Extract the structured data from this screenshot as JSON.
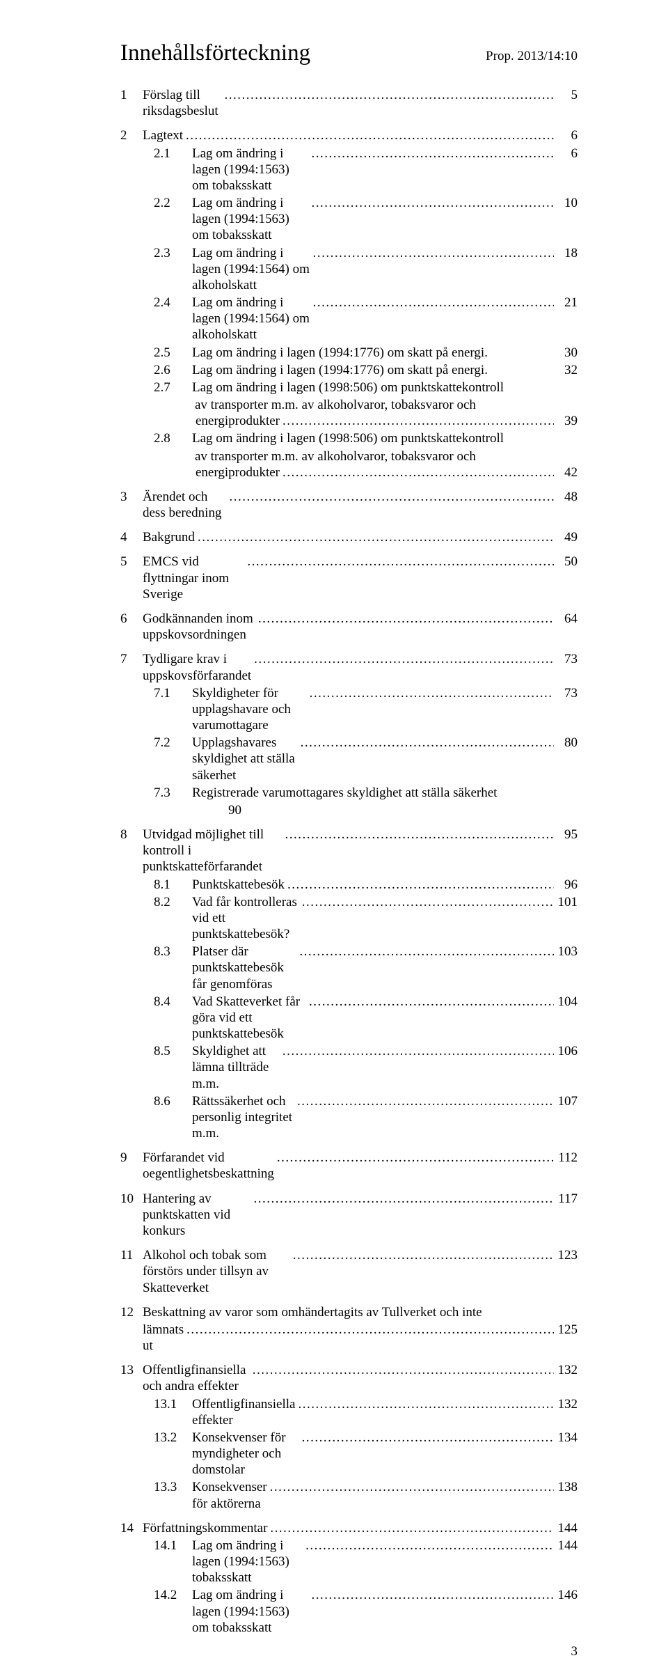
{
  "header": {
    "title": "Innehållsförteckning",
    "prop_ref": "Prop. 2013/14:10"
  },
  "toc": [
    {
      "n": "1",
      "label": "Förslag till riksdagsbeslut",
      "p": "5",
      "children": []
    },
    {
      "n": "2",
      "label": "Lagtext",
      "p": "6",
      "children": [
        {
          "n": "2.1",
          "label": "Lag om ändring i lagen (1994:1563) om tobaksskatt",
          "p": "6"
        },
        {
          "n": "2.2",
          "label": "Lag om ändring i lagen (1994:1563) om tobaksskatt",
          "p": "10"
        },
        {
          "n": "2.3",
          "label": "Lag om ändring i lagen (1994:1564) om alkoholskatt",
          "p": "18"
        },
        {
          "n": "2.4",
          "label": "Lag om ändring i lagen (1994:1564) om alkoholskatt",
          "p": "21"
        },
        {
          "n": "2.5",
          "label": "Lag om ändring i lagen (1994:1776) om skatt på energi.",
          "p": "30",
          "noleader": true
        },
        {
          "n": "2.6",
          "label": "Lag om ändring i lagen (1994:1776) om skatt på energi.",
          "p": "32",
          "noleader": true
        },
        {
          "n": "2.7",
          "label_lines": [
            "Lag om ändring i lagen (1998:506) om punktskattekontroll",
            "av transporter m.m. av alkoholvaror, tobaksvaror och",
            "energiprodukter"
          ],
          "p": "39"
        },
        {
          "n": "2.8",
          "label_lines": [
            "Lag om ändring i lagen (1998:506) om punktskattekontroll",
            "av transporter m.m. av alkoholvaror, tobaksvaror och",
            "energiprodukter"
          ],
          "p": "42"
        }
      ]
    },
    {
      "n": "3",
      "label": "Ärendet och dess beredning",
      "p": "48",
      "children": []
    },
    {
      "n": "4",
      "label": "Bakgrund",
      "p": "49",
      "children": []
    },
    {
      "n": "5",
      "label": "EMCS vid flyttningar inom Sverige",
      "p": "50",
      "children": []
    },
    {
      "n": "6",
      "label": "Godkännanden inom uppskovsordningen",
      "p": "64",
      "children": []
    },
    {
      "n": "7",
      "label": "Tydligare krav i uppskovsförfarandet",
      "p": "73",
      "children": [
        {
          "n": "7.1",
          "label": "Skyldigheter för upplagshavare och varumottagare",
          "p": "73"
        },
        {
          "n": "7.2",
          "label": "Upplagshavares skyldighet att ställa säkerhet",
          "p": "80"
        },
        {
          "n": "7.3",
          "label_lines": [
            "Registrerade varumottagares skyldighet att ställa säkerhet",
            "90"
          ],
          "nopagecol": true
        }
      ]
    },
    {
      "n": "8",
      "label": "Utvidgad möjlighet till kontroll i punktskatteförfarandet",
      "p": "95",
      "children": [
        {
          "n": "8.1",
          "label": "Punktskattebesök",
          "p": "96"
        },
        {
          "n": "8.2",
          "label": "Vad får kontrolleras vid ett punktskattebesök?",
          "p": "101"
        },
        {
          "n": "8.3",
          "label": "Platser där punktskattebesök får genomföras",
          "p": "103"
        },
        {
          "n": "8.4",
          "label": "Vad Skatteverket får göra vid ett punktskattebesök",
          "p": "104"
        },
        {
          "n": "8.5",
          "label": "Skyldighet att lämna tillträde m.m.",
          "p": "106"
        },
        {
          "n": "8.6",
          "label": "Rättssäkerhet och personlig integritet m.m.",
          "p": "107"
        }
      ]
    },
    {
      "n": "9",
      "label": "Förfarandet vid oegentlighetsbeskattning",
      "p": "112",
      "children": []
    },
    {
      "n": "10",
      "label": "Hantering av punktskatten vid konkurs",
      "p": "117",
      "children": []
    },
    {
      "n": "11",
      "label": "Alkohol och tobak som förstörs under tillsyn av Skatteverket",
      "p": "123",
      "children": []
    },
    {
      "n": "12",
      "label_lines": [
        "Beskattning av varor som omhändertagits av Tullverket och inte",
        "lämnats ut"
      ],
      "p": "125",
      "children": []
    },
    {
      "n": "13",
      "label": "Offentligfinansiella och andra effekter",
      "p": "132",
      "children": [
        {
          "n": "13.1",
          "label": "Offentligfinansiella effekter",
          "p": "132"
        },
        {
          "n": "13.2",
          "label": "Konsekvenser för myndigheter och domstolar",
          "p": "134"
        },
        {
          "n": "13.3",
          "label": "Konsekvenser för aktörerna",
          "p": "138"
        }
      ]
    },
    {
      "n": "14",
      "label": "Författningskommentar",
      "p": "144",
      "children": [
        {
          "n": "14.1",
          "label": "Lag om ändring i lagen (1994:1563) tobaksskatt",
          "p": "144"
        },
        {
          "n": "14.2",
          "label": "Lag om ändring i lagen (1994:1563) om tobaksskatt",
          "p": "146"
        }
      ]
    }
  ],
  "page_number": "3"
}
